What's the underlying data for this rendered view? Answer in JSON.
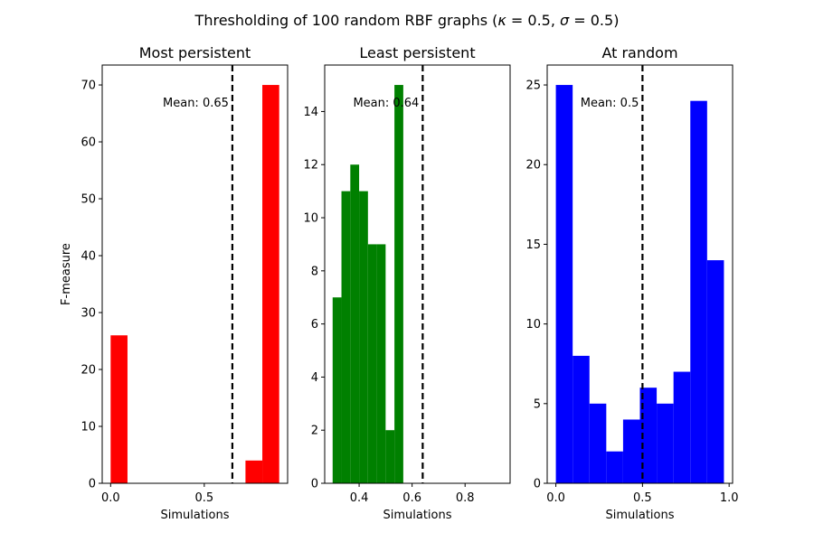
{
  "figure_title": {
    "prefix": "Thresholding of 100 random RBF graphs (",
    "kappa_sym": "κ",
    "kappa_eq": " = 0.5, ",
    "sigma_sym": "σ",
    "sigma_eq": " = 0.5)"
  },
  "chart_data": [
    {
      "type": "bar",
      "title": "Most persistent",
      "xlabel": "Simulations",
      "ylabel": "F-measure",
      "color": "#ff0000",
      "xlim": [
        -0.045,
        0.945
      ],
      "ylim": [
        0,
        73.5
      ],
      "xticks": [
        0.0,
        0.5
      ],
      "xtick_labels": [
        "0.0",
        "0.5"
      ],
      "yticks": [
        0,
        10,
        20,
        30,
        40,
        50,
        60,
        70
      ],
      "ytick_labels": [
        "0",
        "10",
        "20",
        "30",
        "40",
        "50",
        "60",
        "70"
      ],
      "bins": [
        {
          "x0": 0.0,
          "x1": 0.09,
          "count": 26
        },
        {
          "x0": 0.09,
          "x1": 0.18,
          "count": 0
        },
        {
          "x0": 0.18,
          "x1": 0.27,
          "count": 0
        },
        {
          "x0": 0.27,
          "x1": 0.36,
          "count": 0
        },
        {
          "x0": 0.36,
          "x1": 0.45,
          "count": 0
        },
        {
          "x0": 0.45,
          "x1": 0.54,
          "count": 0
        },
        {
          "x0": 0.54,
          "x1": 0.63,
          "count": 0
        },
        {
          "x0": 0.63,
          "x1": 0.72,
          "count": 0
        },
        {
          "x0": 0.72,
          "x1": 0.81,
          "count": 4
        },
        {
          "x0": 0.81,
          "x1": 0.9,
          "count": 70
        }
      ],
      "mean": 0.65,
      "mean_label": "Mean: 0.65"
    },
    {
      "type": "bar",
      "title": "Least persistent",
      "xlabel": "Simulations",
      "ylabel": "",
      "color": "#008000",
      "xlim": [
        0.27,
        0.97
      ],
      "ylim": [
        0,
        15.75
      ],
      "xticks": [
        0.4,
        0.6,
        0.8
      ],
      "xtick_labels": [
        "0.4",
        "0.6",
        "0.8"
      ],
      "yticks": [
        0,
        2,
        4,
        6,
        8,
        10,
        12,
        14
      ],
      "ytick_labels": [
        "0",
        "2",
        "4",
        "6",
        "8",
        "10",
        "12",
        "14"
      ],
      "bins": [
        {
          "x0": 0.3,
          "x1": 0.3333,
          "count": 7
        },
        {
          "x0": 0.3333,
          "x1": 0.3667,
          "count": 11
        },
        {
          "x0": 0.3667,
          "x1": 0.4,
          "count": 12
        },
        {
          "x0": 0.4,
          "x1": 0.4333,
          "count": 11
        },
        {
          "x0": 0.4333,
          "x1": 0.4667,
          "count": 9
        },
        {
          "x0": 0.4667,
          "x1": 0.5,
          "count": 9
        },
        {
          "x0": 0.5,
          "x1": 0.5333,
          "count": 2
        },
        {
          "x0": 0.5333,
          "x1": 0.5667,
          "count": 15
        }
      ],
      "mean": 0.64,
      "mean_label": "Mean: 0.64"
    },
    {
      "type": "bar",
      "title": "At random",
      "xlabel": "Simulations",
      "ylabel": "",
      "color": "#0000ff",
      "xlim": [
        -0.05,
        1.02
      ],
      "ylim": [
        0,
        26.25
      ],
      "xticks": [
        0.0,
        0.5,
        1.0
      ],
      "xtick_labels": [
        "0.0",
        "0.5",
        "1.0"
      ],
      "yticks": [
        0,
        5,
        10,
        15,
        20,
        25
      ],
      "ytick_labels": [
        "0",
        "5",
        "10",
        "15",
        "20",
        "25"
      ],
      "bins": [
        {
          "x0": 0.0,
          "x1": 0.097,
          "count": 25
        },
        {
          "x0": 0.097,
          "x1": 0.194,
          "count": 8
        },
        {
          "x0": 0.194,
          "x1": 0.291,
          "count": 5
        },
        {
          "x0": 0.291,
          "x1": 0.388,
          "count": 2
        },
        {
          "x0": 0.388,
          "x1": 0.485,
          "count": 4
        },
        {
          "x0": 0.485,
          "x1": 0.582,
          "count": 6
        },
        {
          "x0": 0.582,
          "x1": 0.679,
          "count": 5
        },
        {
          "x0": 0.679,
          "x1": 0.776,
          "count": 7
        },
        {
          "x0": 0.776,
          "x1": 0.873,
          "count": 24
        },
        {
          "x0": 0.873,
          "x1": 0.97,
          "count": 14
        }
      ],
      "mean": 0.5,
      "mean_label": "Mean: 0.5"
    }
  ]
}
